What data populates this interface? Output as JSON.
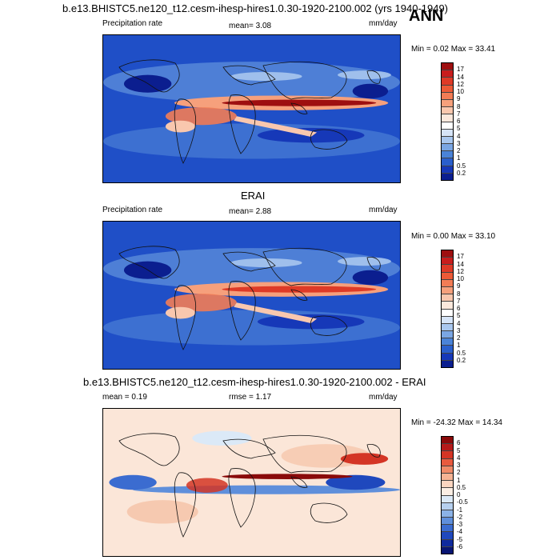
{
  "header": {
    "title": "b.e13.BHISTC5.ne120_t12.cesm-ihesp-hires1.0.30-1920-2100.002 (yrs 1940-1949)",
    "season": "ANN"
  },
  "panels": [
    {
      "left_label": "Precipitation rate",
      "center_label": "mean=  3.08",
      "right_label": "mm/day",
      "minmax": "Min =  0.02 Max =  33.41",
      "colorbar_levels": [
        "17",
        "14",
        "12",
        "10",
        "9",
        "8",
        "7",
        "6",
        "5",
        "4",
        "3",
        "2",
        "1",
        "0.5",
        "0.2"
      ],
      "colorbar_colors": [
        "#9e0f10",
        "#c81d1d",
        "#de3a27",
        "#ec5a37",
        "#f27c55",
        "#f6a07c",
        "#f9c7ae",
        "#fbe8dc",
        "#ffffff",
        "#d6e4f7",
        "#a9c7ee",
        "#7aa6e3",
        "#4a83d8",
        "#2a5fcc",
        "#1638b8",
        "#0b1e8f"
      ]
    },
    {
      "subtitle": "ERAI",
      "left_label": "Precipitation rate",
      "center_label": "mean=  2.88",
      "right_label": "mm/day",
      "minmax": "Min =  0.00 Max =  33.10",
      "colorbar_levels": [
        "17",
        "14",
        "12",
        "10",
        "9",
        "8",
        "7",
        "6",
        "5",
        "4",
        "3",
        "2",
        "1",
        "0.5",
        "0.2"
      ],
      "colorbar_colors": [
        "#9e0f10",
        "#c81d1d",
        "#de3a27",
        "#ec5a37",
        "#f27c55",
        "#f6a07c",
        "#f9c7ae",
        "#fbe8dc",
        "#ffffff",
        "#d6e4f7",
        "#a9c7ee",
        "#7aa6e3",
        "#4a83d8",
        "#2a5fcc",
        "#1638b8",
        "#0b1e8f"
      ]
    },
    {
      "subtitle": "b.e13.BHISTC5.ne120_t12.cesm-ihesp-hires1.0.30-1920-2100.002 - ERAI",
      "left_label": "mean =  0.19",
      "center_label": "rmse =  1.17",
      "right_label": "mm/day",
      "minmax": "Min = -24.32 Max =  14.34",
      "colorbar_levels": [
        "6",
        "5",
        "4",
        "3",
        "2",
        "1",
        "0.5",
        "0",
        "-0.5",
        "-1",
        "-2",
        "-3",
        "-4",
        "-5",
        "-6"
      ],
      "colorbar_colors": [
        "#8a0a0a",
        "#b51a1a",
        "#d43525",
        "#e85a3e",
        "#f08a68",
        "#f5b394",
        "#fad5c0",
        "#fbeee4",
        "#dbe9f7",
        "#b6d0ef",
        "#8bb2e6",
        "#5f8fdb",
        "#3b6cd0",
        "#1f48bd",
        "#0f2a9e",
        "#081573"
      ]
    }
  ]
}
